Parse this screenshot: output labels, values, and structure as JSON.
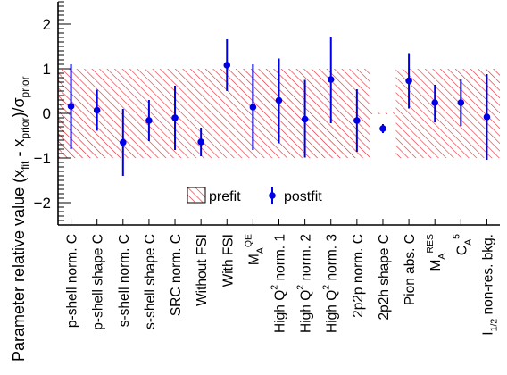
{
  "chart_data": {
    "type": "scatter",
    "ylabel": "Parameter relative value (x_fit - x_prior)/σ_prior",
    "ylim": [
      -2.5,
      2.5
    ],
    "yticks": [
      -2,
      -1,
      0,
      1,
      2
    ],
    "grid": false,
    "legend": {
      "position": "bottom-center",
      "entries": [
        {
          "name": "prefit"
        },
        {
          "name": "postfit"
        }
      ]
    },
    "categories": [
      [
        {
          "t": "p-shell norm. C"
        }
      ],
      [
        {
          "t": "p-shell shape C"
        }
      ],
      [
        {
          "t": "s-shell norm. C"
        }
      ],
      [
        {
          "t": "s-shell shape C"
        }
      ],
      [
        {
          "t": "SRC norm. C"
        }
      ],
      [
        {
          "t": "Without FSI"
        }
      ],
      [
        {
          "t": "With FSI"
        }
      ],
      [
        {
          "t": "M"
        },
        {
          "t": "A",
          "sub": true
        },
        {
          "t": "QE",
          "sup": true
        }
      ],
      [
        {
          "t": "High Q"
        },
        {
          "t": "2",
          "sup": true
        },
        {
          "t": " norm. 1"
        }
      ],
      [
        {
          "t": "High Q"
        },
        {
          "t": "2",
          "sup": true
        },
        {
          "t": " norm. 2"
        }
      ],
      [
        {
          "t": "High Q"
        },
        {
          "t": "2",
          "sup": true
        },
        {
          "t": " norm. 3"
        }
      ],
      [
        {
          "t": "2p2p norm. C"
        }
      ],
      [
        {
          "t": "2p2h shape C"
        }
      ],
      [
        {
          "t": "Pion abs. C"
        }
      ],
      [
        {
          "t": "M"
        },
        {
          "t": "A",
          "sub": true
        },
        {
          "t": "RES",
          "sup": true
        }
      ],
      [
        {
          "t": "C"
        },
        {
          "t": "A",
          "sub": true
        },
        {
          "t": "5",
          "sup": true
        }
      ],
      [
        {
          "t": "I"
        },
        {
          "t": "1/2",
          "sub": true
        },
        {
          "t": " non-res. bkg."
        }
      ]
    ],
    "series": [
      {
        "name": "prefit",
        "kind": "band",
        "y": [
          0,
          0,
          0,
          0,
          0,
          0,
          0,
          0,
          0,
          0,
          0,
          0,
          0,
          0,
          0,
          0,
          0
        ],
        "lower": [
          -1,
          -1,
          -1,
          -1,
          -1,
          -1,
          -1,
          -1,
          -1,
          -1,
          -1,
          -1,
          -0.02,
          -1,
          -1,
          -1,
          -1
        ],
        "upper": [
          1,
          1,
          1,
          1,
          1,
          1,
          1,
          1,
          1,
          1,
          1,
          1,
          0.02,
          1,
          1,
          1,
          1
        ]
      },
      {
        "name": "postfit",
        "kind": "points-with-errors",
        "y": [
          0.16,
          0.07,
          -0.65,
          -0.16,
          -0.1,
          -0.64,
          1.08,
          0.14,
          0.29,
          -0.13,
          0.76,
          -0.16,
          -0.34,
          0.73,
          0.24,
          0.24,
          -0.08
        ],
        "yerr_low": [
          0.96,
          0.46,
          0.75,
          0.46,
          0.72,
          0.32,
          0.58,
          0.96,
          0.96,
          0.86,
          0.98,
          0.7,
          0.1,
          0.62,
          0.44,
          0.52,
          0.96
        ],
        "yerr_high": [
          0.94,
          0.46,
          0.75,
          0.46,
          0.72,
          0.32,
          0.58,
          0.96,
          0.94,
          0.88,
          0.96,
          0.7,
          0.1,
          0.62,
          0.4,
          0.52,
          0.96
        ]
      }
    ],
    "colors": {
      "prefit_hatch": "#e8202a",
      "postfit": "#0000e6",
      "axis": "#000000"
    }
  }
}
